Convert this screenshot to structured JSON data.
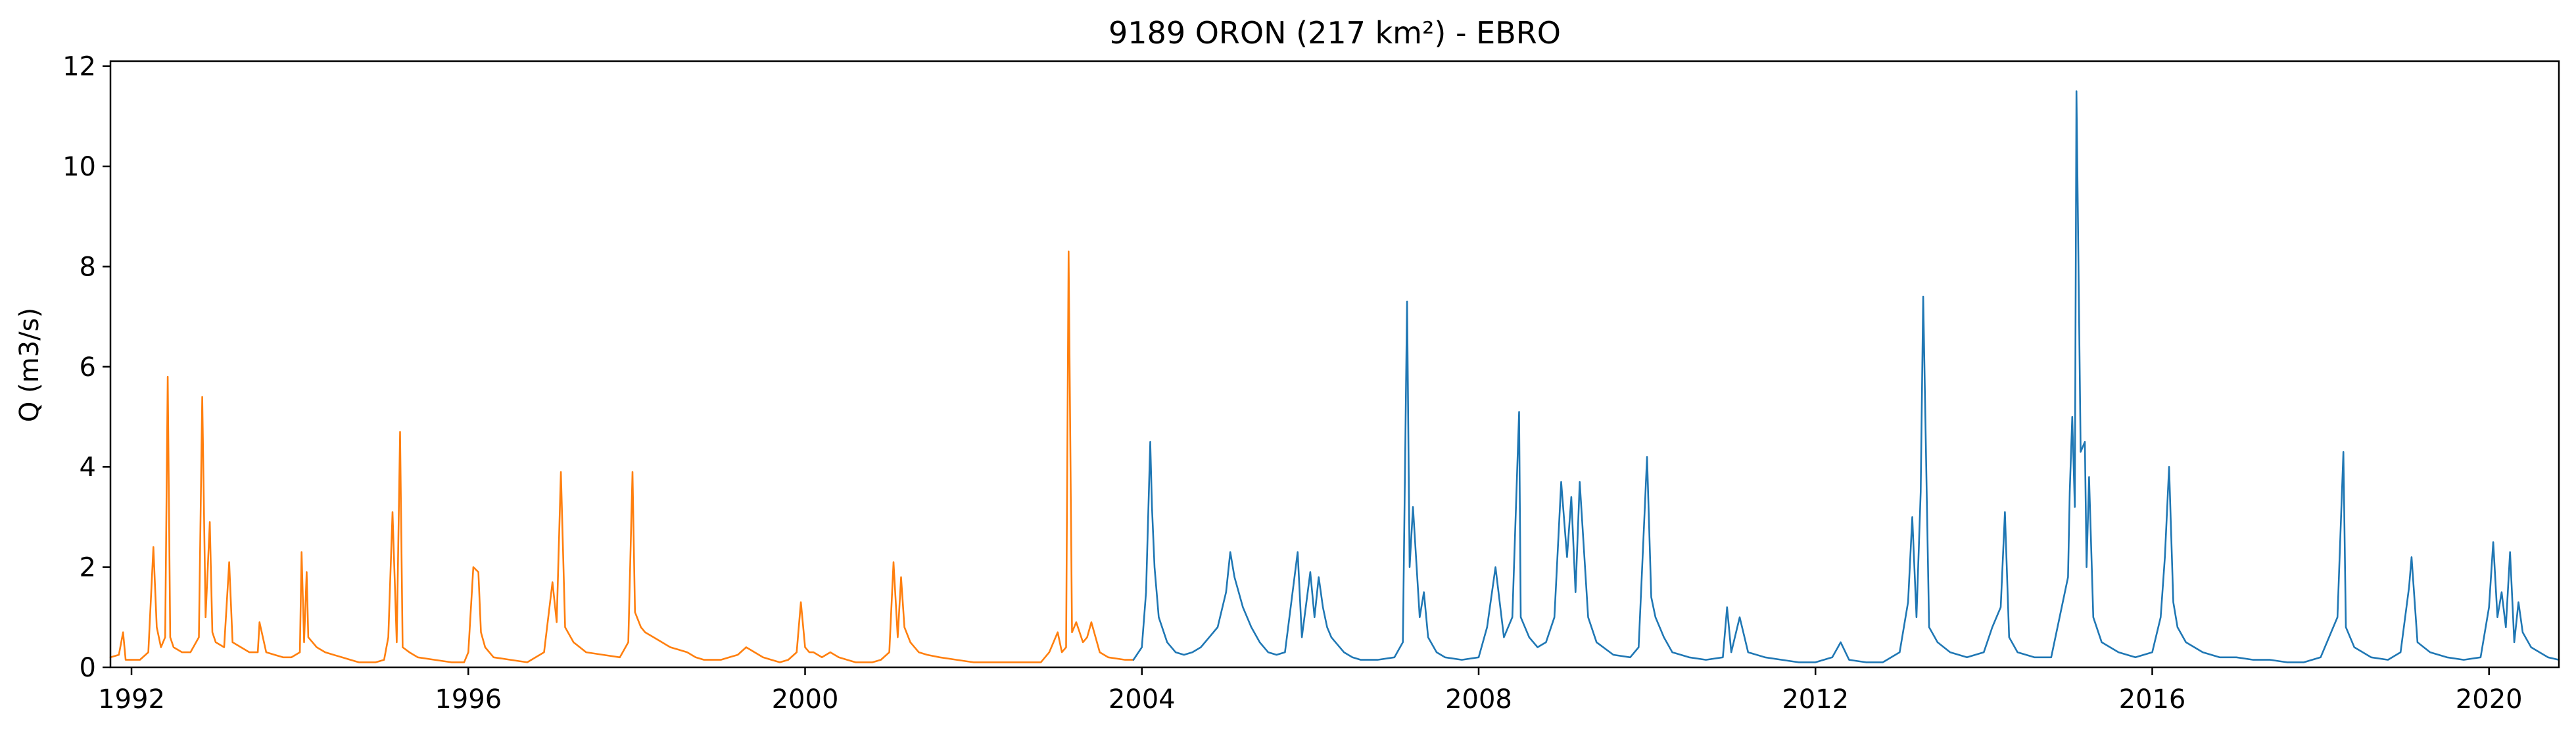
{
  "chart_data": {
    "type": "line",
    "title": "9189 ORON (217 km²) - EBRO",
    "xlabel": "",
    "ylabel": "Q (m3/s)",
    "xlim": [
      1991.75,
      2020.83
    ],
    "ylim": [
      0,
      12.1
    ],
    "x_ticks": [
      1992,
      1996,
      2000,
      2004,
      2008,
      2012,
      2016,
      2020
    ],
    "y_ticks": [
      0,
      2,
      4,
      6,
      8,
      10,
      12
    ],
    "grid": false,
    "legend": "none",
    "series": [
      {
        "color": "#ff7f0e",
        "x": [
          1991.75,
          1991.85,
          1991.9,
          1991.93,
          1992.0,
          1992.1,
          1992.2,
          1992.26,
          1992.3,
          1992.35,
          1992.4,
          1992.43,
          1992.46,
          1992.5,
          1992.6,
          1992.7,
          1992.8,
          1992.84,
          1992.88,
          1992.93,
          1992.96,
          1993.0,
          1993.1,
          1993.16,
          1993.2,
          1993.3,
          1993.4,
          1993.5,
          1993.52,
          1993.6,
          1993.7,
          1993.8,
          1993.9,
          1994.0,
          1994.02,
          1994.05,
          1994.08,
          1994.1,
          1994.2,
          1994.3,
          1994.4,
          1994.5,
          1994.6,
          1994.7,
          1994.8,
          1994.9,
          1995.0,
          1995.05,
          1995.1,
          1995.15,
          1995.19,
          1995.22,
          1995.3,
          1995.4,
          1995.6,
          1995.8,
          1995.95,
          1996.0,
          1996.06,
          1996.12,
          1996.15,
          1996.2,
          1996.3,
          1996.5,
          1996.7,
          1996.9,
          1997.0,
          1997.05,
          1997.1,
          1997.15,
          1997.25,
          1997.4,
          1997.6,
          1997.8,
          1997.9,
          1997.95,
          1997.98,
          1998.05,
          1998.1,
          1998.2,
          1998.3,
          1998.4,
          1998.5,
          1998.6,
          1998.7,
          1998.8,
          1998.9,
          1999.0,
          1999.1,
          1999.2,
          1999.3,
          1999.4,
          1999.5,
          1999.6,
          1999.7,
          1999.8,
          1999.9,
          1999.95,
          2000.0,
          2000.05,
          2000.1,
          2000.2,
          2000.3,
          2000.4,
          2000.5,
          2000.6,
          2000.7,
          2000.8,
          2000.9,
          2001.0,
          2001.05,
          2001.1,
          2001.14,
          2001.18,
          2001.25,
          2001.35,
          2001.45,
          2001.6,
          2001.8,
          2002.0,
          2002.2,
          2002.4,
          2002.6,
          2002.8,
          2002.9,
          2003.0,
          2003.05,
          2003.1,
          2003.13,
          2003.17,
          2003.22,
          2003.3,
          2003.35,
          2003.4,
          2003.5,
          2003.6,
          2003.8,
          2003.9
        ],
        "y": [
          0.2,
          0.25,
          0.7,
          0.15,
          0.15,
          0.15,
          0.3,
          2.4,
          0.8,
          0.4,
          0.6,
          5.8,
          0.6,
          0.4,
          0.3,
          0.3,
          0.6,
          5.4,
          1.0,
          2.9,
          0.7,
          0.5,
          0.4,
          2.1,
          0.5,
          0.4,
          0.3,
          0.3,
          0.9,
          0.3,
          0.25,
          0.2,
          0.2,
          0.3,
          2.3,
          0.5,
          1.9,
          0.6,
          0.4,
          0.3,
          0.25,
          0.2,
          0.15,
          0.1,
          0.1,
          0.1,
          0.15,
          0.6,
          3.1,
          0.5,
          4.7,
          0.4,
          0.3,
          0.2,
          0.15,
          0.1,
          0.1,
          0.3,
          2.0,
          1.9,
          0.7,
          0.4,
          0.2,
          0.15,
          0.1,
          0.3,
          1.7,
          0.9,
          3.9,
          0.8,
          0.5,
          0.3,
          0.25,
          0.2,
          0.5,
          3.9,
          1.1,
          0.8,
          0.7,
          0.6,
          0.5,
          0.4,
          0.35,
          0.3,
          0.2,
          0.15,
          0.15,
          0.15,
          0.2,
          0.25,
          0.4,
          0.3,
          0.2,
          0.15,
          0.1,
          0.15,
          0.3,
          1.3,
          0.4,
          0.3,
          0.3,
          0.2,
          0.3,
          0.2,
          0.15,
          0.1,
          0.1,
          0.1,
          0.15,
          0.3,
          2.1,
          0.6,
          1.8,
          0.8,
          0.5,
          0.3,
          0.25,
          0.2,
          0.15,
          0.1,
          0.1,
          0.1,
          0.1,
          0.1,
          0.3,
          0.7,
          0.3,
          0.4,
          8.3,
          0.7,
          0.9,
          0.5,
          0.6,
          0.9,
          0.3,
          0.2,
          0.15,
          0.15
        ]
      },
      {
        "color": "#1f77b4",
        "x": [
          2003.9,
          2004.0,
          2004.05,
          2004.1,
          2004.12,
          2004.15,
          2004.2,
          2004.3,
          2004.4,
          2004.5,
          2004.6,
          2004.7,
          2004.8,
          2004.9,
          2005.0,
          2005.05,
          2005.1,
          2005.15,
          2005.2,
          2005.3,
          2005.4,
          2005.5,
          2005.6,
          2005.7,
          2005.85,
          2005.9,
          2006.0,
          2006.05,
          2006.1,
          2006.15,
          2006.2,
          2006.25,
          2006.3,
          2006.4,
          2006.5,
          2006.6,
          2006.8,
          2007.0,
          2007.1,
          2007.15,
          2007.18,
          2007.22,
          2007.3,
          2007.35,
          2007.4,
          2007.5,
          2007.6,
          2007.8,
          2008.0,
          2008.1,
          2008.2,
          2008.3,
          2008.4,
          2008.48,
          2008.5,
          2008.6,
          2008.7,
          2008.8,
          2008.9,
          2008.98,
          2009.05,
          2009.1,
          2009.15,
          2009.2,
          2009.3,
          2009.4,
          2009.6,
          2009.8,
          2009.9,
          2010.0,
          2010.05,
          2010.1,
          2010.2,
          2010.3,
          2010.5,
          2010.7,
          2010.9,
          2010.95,
          2011.0,
          2011.1,
          2011.2,
          2011.4,
          2011.6,
          2011.8,
          2012.0,
          2012.2,
          2012.3,
          2012.4,
          2012.6,
          2012.8,
          2013.0,
          2013.1,
          2013.15,
          2013.2,
          2013.25,
          2013.28,
          2013.35,
          2013.45,
          2013.6,
          2013.8,
          2014.0,
          2014.1,
          2014.2,
          2014.25,
          2014.3,
          2014.4,
          2014.6,
          2014.8,
          2014.9,
          2015.0,
          2015.02,
          2015.05,
          2015.08,
          2015.1,
          2015.15,
          2015.2,
          2015.22,
          2015.25,
          2015.3,
          2015.4,
          2015.5,
          2015.6,
          2015.8,
          2016.0,
          2016.1,
          2016.15,
          2016.2,
          2016.25,
          2016.3,
          2016.4,
          2016.6,
          2016.8,
          2017.0,
          2017.2,
          2017.4,
          2017.6,
          2017.8,
          2018.0,
          2018.1,
          2018.2,
          2018.27,
          2018.3,
          2018.4,
          2018.6,
          2018.8,
          2018.95,
          2019.05,
          2019.08,
          2019.15,
          2019.3,
          2019.5,
          2019.7,
          2019.9,
          2020.0,
          2020.05,
          2020.1,
          2020.15,
          2020.2,
          2020.25,
          2020.3,
          2020.35,
          2020.4,
          2020.5,
          2020.6,
          2020.7,
          2020.83
        ],
        "y": [
          0.15,
          0.4,
          1.5,
          4.5,
          3.2,
          2.0,
          1.0,
          0.5,
          0.3,
          0.25,
          0.3,
          0.4,
          0.6,
          0.8,
          1.5,
          2.3,
          1.8,
          1.5,
          1.2,
          0.8,
          0.5,
          0.3,
          0.25,
          0.3,
          2.3,
          0.6,
          1.9,
          1.0,
          1.8,
          1.2,
          0.8,
          0.6,
          0.5,
          0.3,
          0.2,
          0.15,
          0.15,
          0.2,
          0.5,
          7.3,
          2.0,
          3.2,
          1.0,
          1.5,
          0.6,
          0.3,
          0.2,
          0.15,
          0.2,
          0.8,
          2.0,
          0.6,
          1.0,
          5.1,
          1.0,
          0.6,
          0.4,
          0.5,
          1.0,
          3.7,
          2.2,
          3.4,
          1.5,
          3.7,
          1.0,
          0.5,
          0.25,
          0.2,
          0.4,
          4.2,
          1.4,
          1.0,
          0.6,
          0.3,
          0.2,
          0.15,
          0.2,
          1.2,
          0.3,
          1.0,
          0.3,
          0.2,
          0.15,
          0.1,
          0.1,
          0.2,
          0.5,
          0.15,
          0.1,
          0.1,
          0.3,
          1.3,
          3.0,
          1.0,
          3.5,
          7.4,
          0.8,
          0.5,
          0.3,
          0.2,
          0.3,
          0.8,
          1.2,
          3.1,
          0.6,
          0.3,
          0.2,
          0.2,
          1.0,
          1.8,
          3.5,
          5.0,
          3.2,
          11.5,
          4.3,
          4.5,
          2.0,
          3.8,
          1.0,
          0.5,
          0.4,
          0.3,
          0.2,
          0.3,
          1.0,
          2.2,
          4.0,
          1.3,
          0.8,
          0.5,
          0.3,
          0.2,
          0.2,
          0.15,
          0.15,
          0.1,
          0.1,
          0.2,
          0.6,
          1.0,
          4.3,
          0.8,
          0.4,
          0.2,
          0.15,
          0.3,
          1.6,
          2.2,
          0.5,
          0.3,
          0.2,
          0.15,
          0.2,
          1.2,
          2.5,
          1.0,
          1.5,
          0.8,
          2.3,
          0.5,
          1.3,
          0.7,
          0.4,
          0.3,
          0.2,
          0.15
        ]
      }
    ]
  }
}
